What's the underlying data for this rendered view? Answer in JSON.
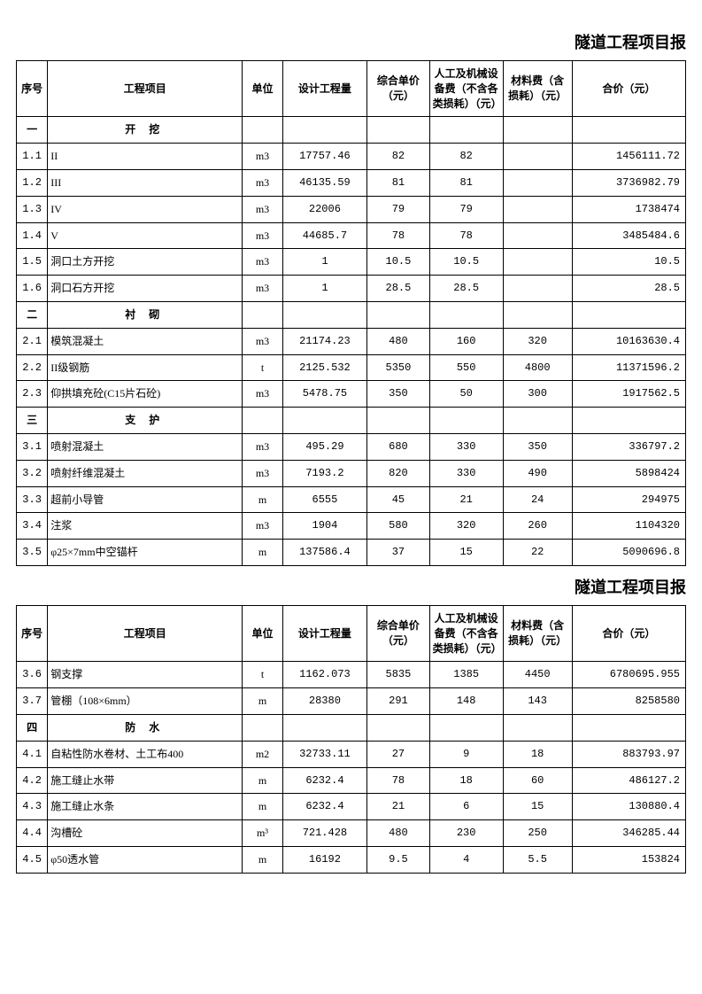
{
  "titles": {
    "t1": "隧道工程项目报",
    "t2": "隧道工程项目报"
  },
  "headers": {
    "seq": "序号",
    "proj": "工程项目",
    "unit": "单位",
    "qty": "设计工程量",
    "price": "综合单价（元）",
    "labor": "人工及机械设备费（不含各类损耗）（元）",
    "mat": "材料费（含损耗）（元）",
    "sum": "合价（元）"
  },
  "sections": {
    "s1": {
      "seq": "一",
      "label": "开 挖"
    },
    "s2": {
      "seq": "二",
      "label": "衬 砌"
    },
    "s3": {
      "seq": "三",
      "label": "支 护"
    },
    "s4": {
      "seq": "四",
      "label": "防 水"
    }
  },
  "rows": {
    "r1_1": {
      "seq": "1.1",
      "proj": "II",
      "unit": "m3",
      "qty": "17757.46",
      "price": "82",
      "labor": "82",
      "mat": "",
      "sum": "1456111.72"
    },
    "r1_2": {
      "seq": "1.2",
      "proj": "III",
      "unit": "m3",
      "qty": "46135.59",
      "price": "81",
      "labor": "81",
      "mat": "",
      "sum": "3736982.79"
    },
    "r1_3": {
      "seq": "1.3",
      "proj": "IV",
      "unit": "m3",
      "qty": "22006",
      "price": "79",
      "labor": "79",
      "mat": "",
      "sum": "1738474"
    },
    "r1_4": {
      "seq": "1.4",
      "proj": "V",
      "unit": "m3",
      "qty": "44685.7",
      "price": "78",
      "labor": "78",
      "mat": "",
      "sum": "3485484.6"
    },
    "r1_5": {
      "seq": "1.5",
      "proj": "洞口土方开挖",
      "unit": "m3",
      "qty": "1",
      "price": "10.5",
      "labor": "10.5",
      "mat": "",
      "sum": "10.5"
    },
    "r1_6": {
      "seq": "1.6",
      "proj": "洞口石方开挖",
      "unit": "m3",
      "qty": "1",
      "price": "28.5",
      "labor": "28.5",
      "mat": "",
      "sum": "28.5"
    },
    "r2_1": {
      "seq": "2.1",
      "proj": "模筑混凝土",
      "unit": "m3",
      "qty": "21174.23",
      "price": "480",
      "labor": "160",
      "mat": "320",
      "sum": "10163630.4"
    },
    "r2_2": {
      "seq": "2.2",
      "proj": "II级钢筋",
      "unit": "t",
      "qty": "2125.532",
      "price": "5350",
      "labor": "550",
      "mat": "4800",
      "sum": "11371596.2"
    },
    "r2_3": {
      "seq": "2.3",
      "proj": "仰拱填充砼(C15片石砼)",
      "unit": "m3",
      "qty": "5478.75",
      "price": "350",
      "labor": "50",
      "mat": "300",
      "sum": "1917562.5"
    },
    "r3_1": {
      "seq": "3.1",
      "proj": "喷射混凝土",
      "unit": "m3",
      "qty": "495.29",
      "price": "680",
      "labor": "330",
      "mat": "350",
      "sum": "336797.2"
    },
    "r3_2": {
      "seq": "3.2",
      "proj": "喷射纤维混凝土",
      "unit": "m3",
      "qty": "7193.2",
      "price": "820",
      "labor": "330",
      "mat": "490",
      "sum": "5898424"
    },
    "r3_3": {
      "seq": "3.3",
      "proj": "超前小导管",
      "unit": "m",
      "qty": "6555",
      "price": "45",
      "labor": "21",
      "mat": "24",
      "sum": "294975"
    },
    "r3_4": {
      "seq": "3.4",
      "proj": "注浆",
      "unit": "m3",
      "qty": "1904",
      "price": "580",
      "labor": "320",
      "mat": "260",
      "sum": "1104320"
    },
    "r3_5": {
      "seq": "3.5",
      "proj": "φ25×7mm中空锚杆",
      "unit": "m",
      "qty": "137586.4",
      "price": "37",
      "labor": "15",
      "mat": "22",
      "sum": "5090696.8"
    },
    "r3_6": {
      "seq": "3.6",
      "proj": "钢支撑",
      "unit": "t",
      "qty": "1162.073",
      "price": "5835",
      "labor": "1385",
      "mat": "4450",
      "sum": "6780695.955"
    },
    "r3_7": {
      "seq": "3.7",
      "proj": "管棚（108×6mm）",
      "unit": "m",
      "qty": "28380",
      "price": "291",
      "labor": "148",
      "mat": "143",
      "sum": "8258580"
    },
    "r4_1": {
      "seq": "4.1",
      "proj": "自粘性防水卷材、土工布400",
      "unit": "m2",
      "qty": "32733.11",
      "price": "27",
      "labor": "9",
      "mat": "18",
      "sum": "883793.97"
    },
    "r4_2": {
      "seq": "4.2",
      "proj": "施工缝止水带",
      "unit": "m",
      "qty": "6232.4",
      "price": "78",
      "labor": "18",
      "mat": "60",
      "sum": "486127.2"
    },
    "r4_3": {
      "seq": "4.3",
      "proj": "施工缝止水条",
      "unit": "m",
      "qty": "6232.4",
      "price": "21",
      "labor": "6",
      "mat": "15",
      "sum": "130880.4"
    },
    "r4_4": {
      "seq": "4.4",
      "proj": "沟槽砼",
      "unit": "m³",
      "qty": "721.428",
      "price": "480",
      "labor": "230",
      "mat": "250",
      "sum": "346285.44"
    },
    "r4_5": {
      "seq": "4.5",
      "proj": "φ50透水管",
      "unit": "m",
      "qty": "16192",
      "price": "9.5",
      "labor": "4",
      "mat": "5.5",
      "sum": "153824"
    }
  },
  "style": {
    "background": "#ffffff",
    "text_color": "#000000",
    "border_color": "#000000",
    "title_fontsize": 18,
    "cell_fontsize": 12
  }
}
